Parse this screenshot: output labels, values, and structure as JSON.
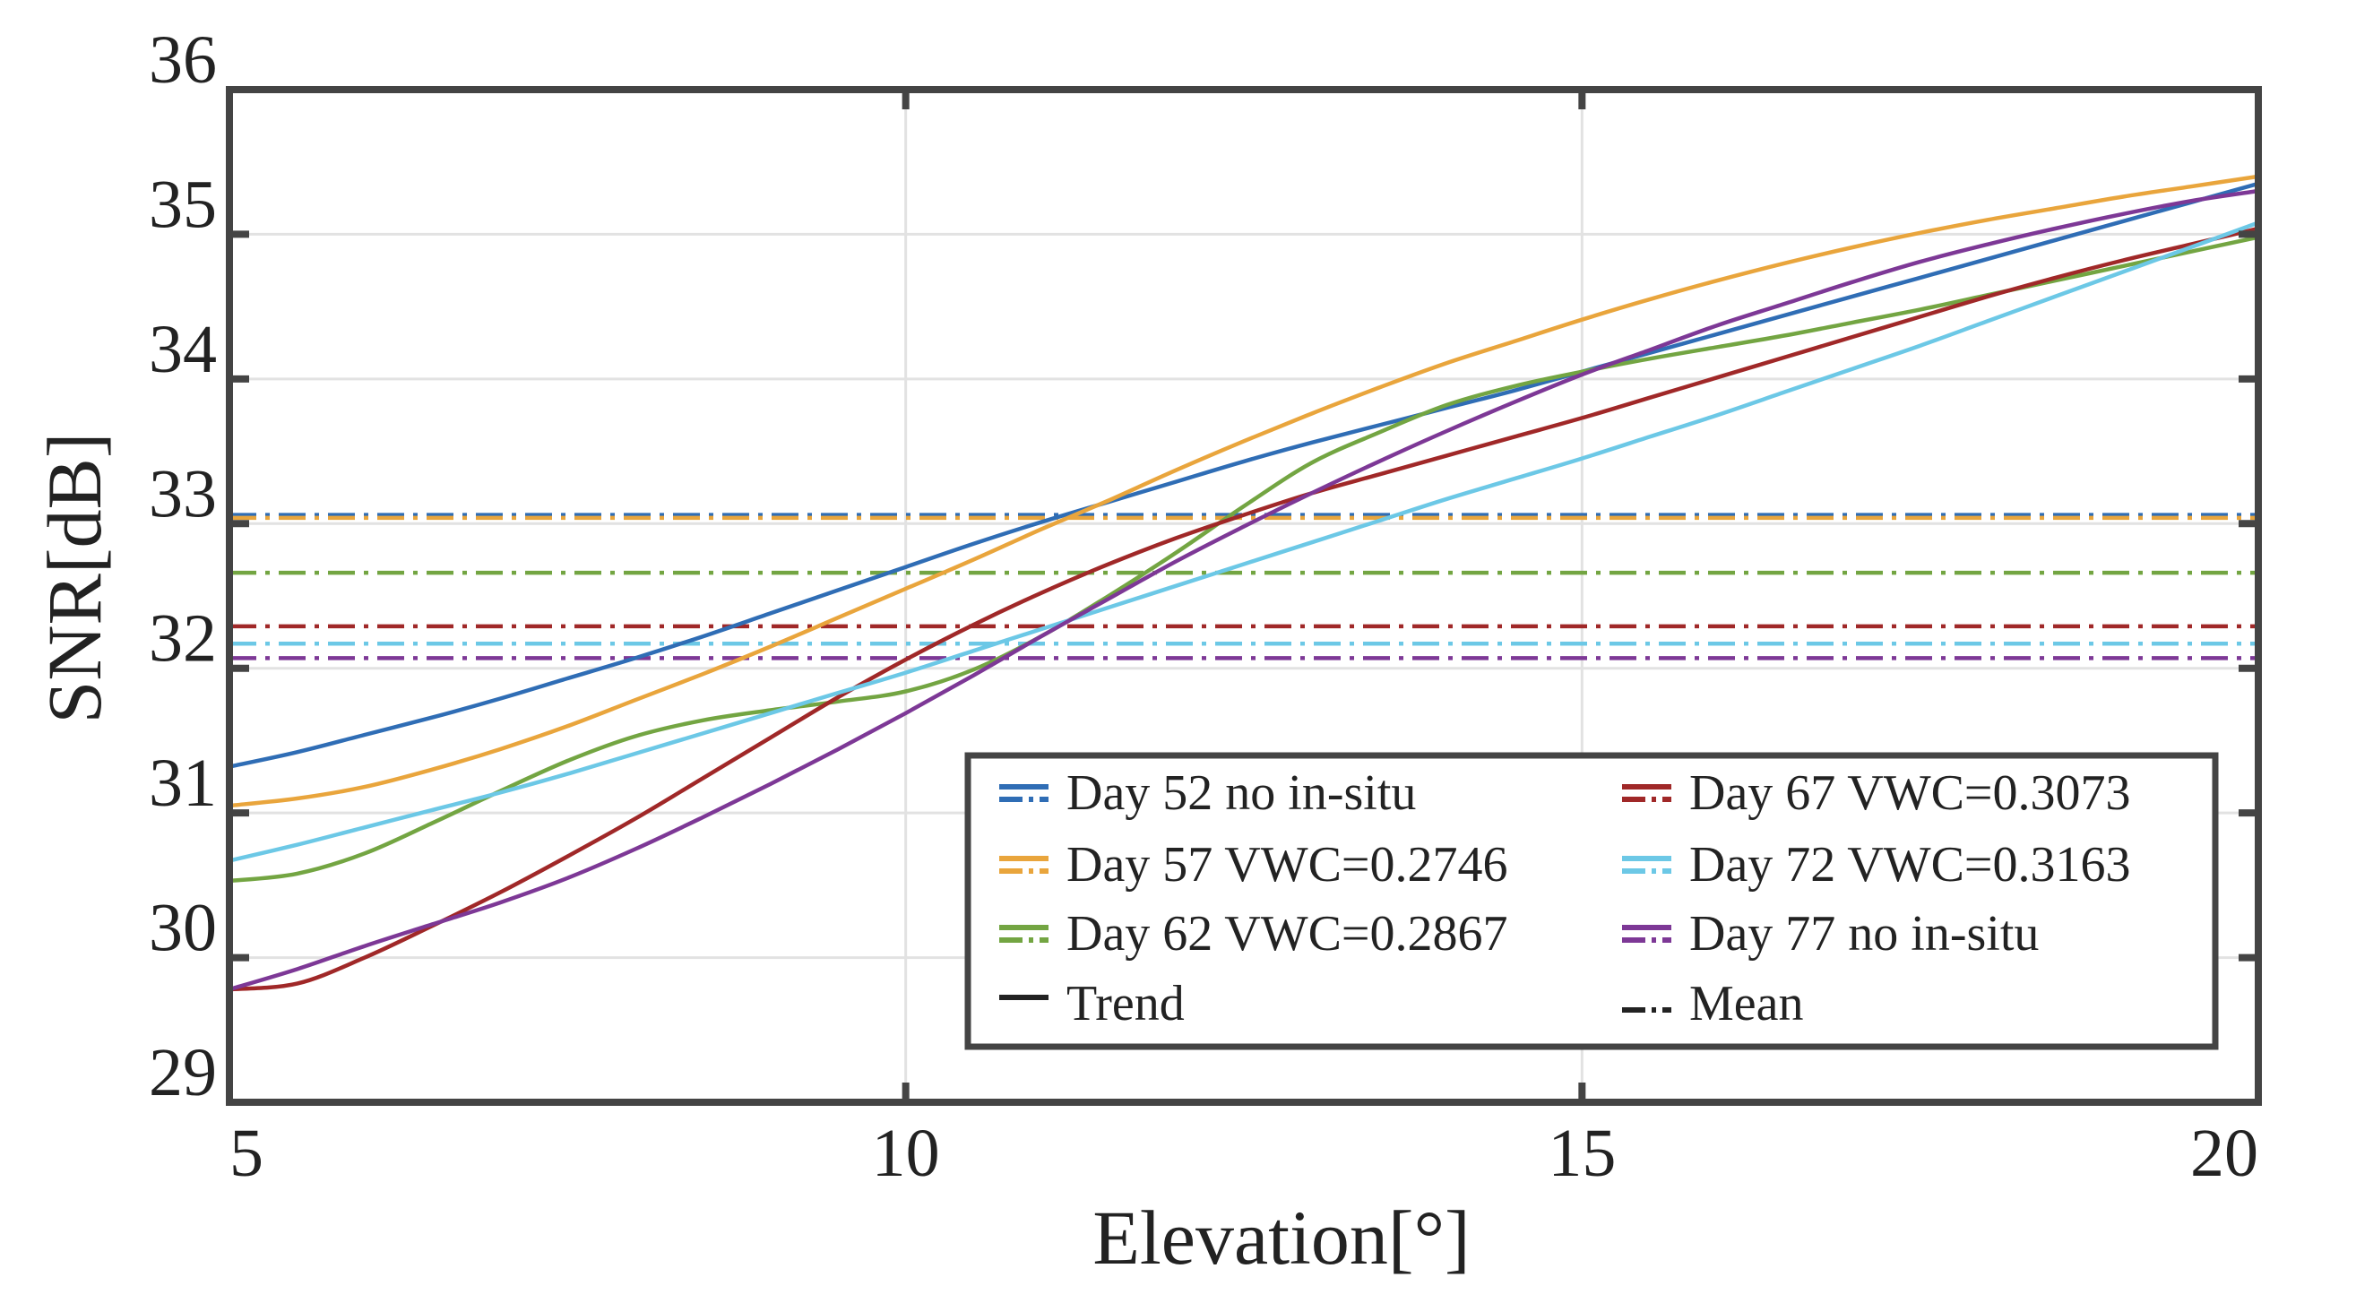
{
  "chart_data": {
    "type": "line",
    "title": "",
    "xlabel": "Elevation[°]",
    "ylabel": "SNR[dB]",
    "xlim": [
      5,
      20
    ],
    "ylim": [
      29,
      36
    ],
    "xticks": [
      5,
      10,
      15,
      20
    ],
    "yticks": [
      29,
      30,
      31,
      32,
      33,
      34,
      35,
      36
    ],
    "grid": true,
    "legend_position": "lower-right",
    "x": [
      5,
      5.5,
      6,
      6.5,
      7,
      7.5,
      8,
      8.5,
      9,
      9.5,
      10,
      10.5,
      11,
      11.5,
      12,
      12.5,
      13,
      13.5,
      14,
      14.5,
      15,
      15.5,
      16,
      16.5,
      17,
      17.5,
      18,
      18.5,
      19,
      19.5,
      20
    ],
    "series": [
      {
        "name": "Day 52 no in-situ",
        "color": "#2f6db5",
        "trend": [
          31.32,
          31.42,
          31.54,
          31.66,
          31.79,
          31.93,
          32.07,
          32.22,
          32.38,
          32.54,
          32.7,
          32.86,
          33.01,
          33.15,
          33.29,
          33.43,
          33.56,
          33.68,
          33.8,
          33.92,
          34.05,
          34.18,
          34.31,
          34.44,
          34.57,
          34.7,
          34.83,
          34.96,
          35.09,
          35.22,
          35.35
        ],
        "mean": 33.06
      },
      {
        "name": "Day 57 VWC=0.2746",
        "color": "#e9a53c",
        "trend": [
          31.05,
          31.1,
          31.18,
          31.3,
          31.44,
          31.6,
          31.78,
          31.96,
          32.15,
          32.35,
          32.55,
          32.75,
          32.96,
          33.16,
          33.37,
          33.57,
          33.76,
          33.94,
          34.11,
          34.26,
          34.41,
          34.55,
          34.68,
          34.8,
          34.91,
          35.01,
          35.1,
          35.18,
          35.26,
          35.33,
          35.4
        ],
        "mean": 33.04
      },
      {
        "name": "Day 62 VWC=0.2867",
        "color": "#73a542",
        "trend": [
          30.53,
          30.58,
          30.72,
          30.93,
          31.15,
          31.36,
          31.53,
          31.64,
          31.71,
          31.77,
          31.84,
          31.99,
          32.22,
          32.5,
          32.8,
          33.12,
          33.42,
          33.63,
          33.82,
          33.95,
          34.05,
          34.14,
          34.22,
          34.3,
          34.39,
          34.48,
          34.58,
          34.68,
          34.78,
          34.88,
          34.98
        ],
        "mean": 32.66
      },
      {
        "name": "Day 67 VWC=0.3073",
        "color": "#a02828",
        "trend": [
          29.78,
          29.82,
          30.0,
          30.22,
          30.45,
          30.7,
          30.96,
          31.24,
          31.52,
          31.8,
          32.06,
          32.3,
          32.52,
          32.72,
          32.9,
          33.06,
          33.21,
          33.34,
          33.47,
          33.6,
          33.73,
          33.87,
          34.01,
          34.15,
          34.29,
          34.43,
          34.57,
          34.7,
          34.82,
          34.93,
          35.04
        ],
        "mean": 32.29
      },
      {
        "name": "Day 72 VWC=0.3163",
        "color": "#6cc8e6",
        "trend": [
          30.67,
          30.78,
          30.9,
          31.02,
          31.14,
          31.27,
          31.41,
          31.55,
          31.69,
          31.83,
          31.97,
          32.12,
          32.27,
          32.42,
          32.57,
          32.72,
          32.87,
          33.02,
          33.17,
          33.31,
          33.45,
          33.6,
          33.75,
          33.91,
          34.07,
          34.23,
          34.4,
          34.57,
          34.74,
          34.91,
          35.08
        ],
        "mean": 32.17
      },
      {
        "name": "Day 77 no in-situ",
        "color": "#7d3896",
        "trend": [
          29.78,
          29.92,
          30.08,
          30.23,
          30.38,
          30.55,
          30.75,
          30.97,
          31.2,
          31.44,
          31.69,
          31.95,
          32.22,
          32.48,
          32.74,
          32.98,
          33.21,
          33.43,
          33.64,
          33.84,
          34.03,
          34.2,
          34.37,
          34.52,
          34.67,
          34.81,
          34.93,
          35.04,
          35.14,
          35.23,
          35.3
        ],
        "mean": 32.07
      }
    ],
    "legend_items": [
      {
        "label": "Day 52 no in-situ",
        "color": "#2f6db5"
      },
      {
        "label": "Day 67 VWC=0.3073",
        "color": "#a02828"
      },
      {
        "label": "Day 57 VWC=0.2746",
        "color": "#e9a53c"
      },
      {
        "label": "Day 72 VWC=0.3163",
        "color": "#6cc8e6"
      },
      {
        "label": "Day 62 VWC=0.2867",
        "color": "#73a542"
      },
      {
        "label": "Day 77 no in-situ",
        "color": "#7d3896"
      },
      {
        "label": "Trend",
        "color": "#222222"
      },
      {
        "label": "Mean",
        "color": "#222222"
      }
    ]
  }
}
